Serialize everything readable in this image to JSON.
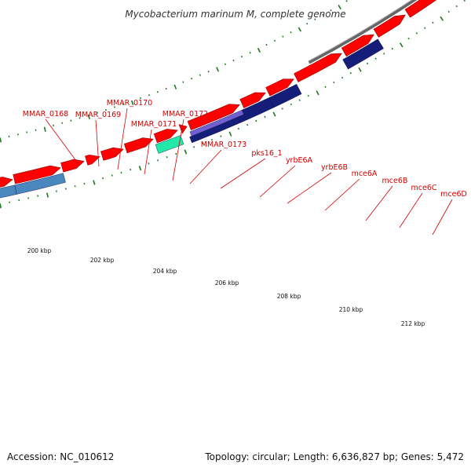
{
  "title": "Mycobacterium marinum M, complete genome",
  "footer": {
    "accession": "Accession: NC_010612",
    "summary": "Topology: circular; Length: 6,636,827 bp; Genes: 5,472"
  },
  "colors": {
    "cds_forward": "#ff0000",
    "cds_outline": "#990000",
    "feature_steelblue": "#4a87bf",
    "feature_teal": "#22e8a8",
    "feature_navy": "#141e78",
    "feature_lavender": "#7060d0",
    "backbone": "#666666",
    "tick_green": "#1a7a1a",
    "label_red": "#d40000"
  },
  "scale": {
    "labels": [
      "200 kbp",
      "202 kbp",
      "204 kbp",
      "206 kbp",
      "208 kbp",
      "210 kbp",
      "212 kbp"
    ]
  },
  "gene_labels": [
    "MMAR_0168",
    "MMAR_0169",
    "MMAR_0170",
    "MMAR_0171",
    "MMAR_0172",
    "MMAR_0173",
    "pks16_1",
    "yrbE6A",
    "yrbE6B",
    "mce6A",
    "mce6B",
    "mce6C",
    "mce6D"
  ]
}
